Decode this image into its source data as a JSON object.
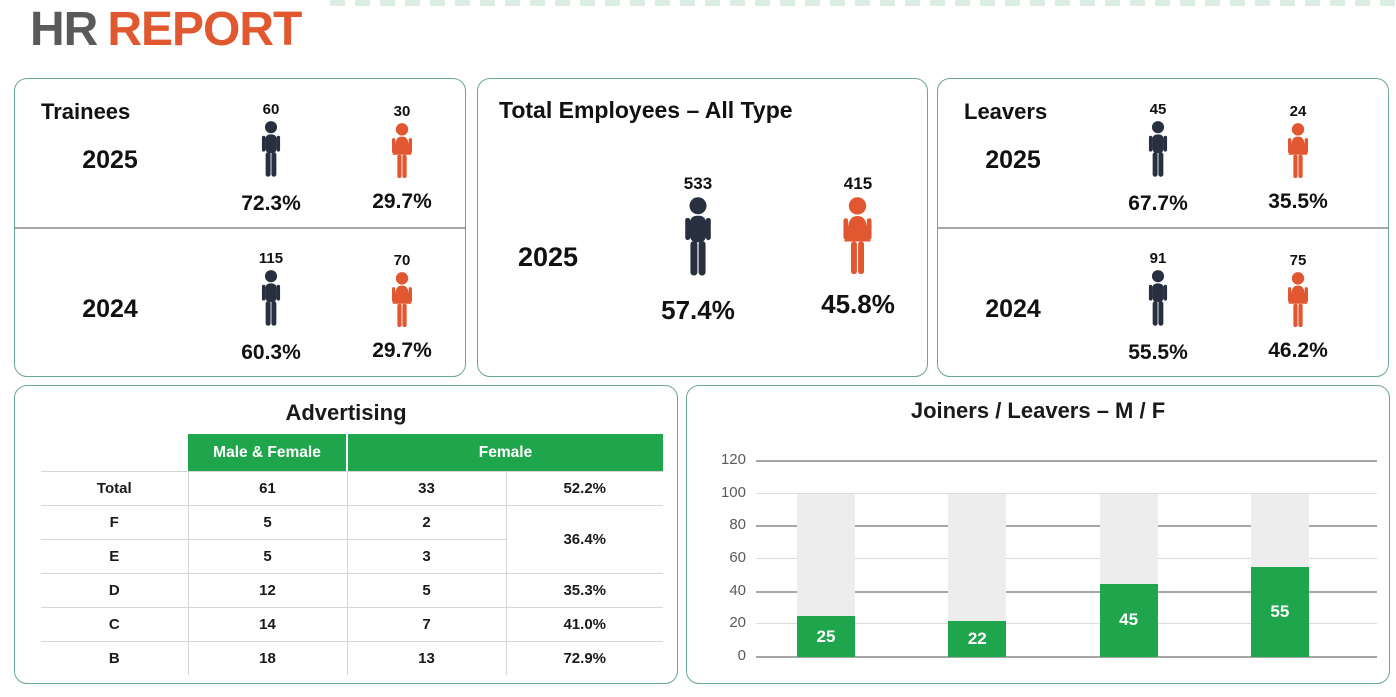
{
  "title": {
    "part1": "HR",
    "part2": "REPORT"
  },
  "colors": {
    "title_gray": "#595a5c",
    "accent_orange": "#e05730",
    "male_navy": "#283040",
    "female_orange": "#e05730",
    "green": "#1fa64d",
    "card_border": "#69a88b",
    "bar_background_gray": "#ededed"
  },
  "cards": {
    "trainees": {
      "title": "Trainees",
      "rows": [
        {
          "year": "2025",
          "male_count": "60",
          "male_pct": "72.3%",
          "female_count": "30",
          "female_pct": "29.7%"
        },
        {
          "year": "2024",
          "male_count": "115",
          "male_pct": "60.3%",
          "female_count": "70",
          "female_pct": "29.7%"
        }
      ]
    },
    "total_employees": {
      "title": "Total Employees – All Type",
      "rows": [
        {
          "year": "2025",
          "male_count": "533",
          "male_pct": "57.4%",
          "female_count": "415",
          "female_pct": "45.8%"
        }
      ]
    },
    "leavers": {
      "title": "Leavers",
      "rows": [
        {
          "year": "2025",
          "male_count": "45",
          "male_pct": "67.7%",
          "female_count": "24",
          "female_pct": "35.5%"
        },
        {
          "year": "2024",
          "male_count": "91",
          "male_pct": "55.5%",
          "female_count": "75",
          "female_pct": "46.2%"
        }
      ]
    }
  },
  "advertising": {
    "title": "Advertising",
    "col_header_1": "Male & Female",
    "col_header_2": "Female",
    "rows": [
      {
        "label": "Total",
        "male_female": "61",
        "female": "33",
        "female_pct": "52.2%"
      },
      {
        "label": "F",
        "male_female": "5",
        "female": "2",
        "female_pct": "36.4%"
      },
      {
        "label": "E",
        "male_female": "5",
        "female": "3"
      },
      {
        "label": "D",
        "male_female": "12",
        "female": "5",
        "female_pct": "35.3%"
      },
      {
        "label": "C",
        "male_female": "14",
        "female": "7",
        "female_pct": "41.0%"
      },
      {
        "label": "B",
        "male_female": "18",
        "female": "13",
        "female_pct": "72.9%"
      }
    ]
  },
  "chart_data": {
    "type": "bar",
    "title": "Joiners / Leavers – M / F",
    "categories": [
      "",
      "",
      "",
      ""
    ],
    "series": [
      {
        "name": "Value",
        "values": [
          25,
          22,
          45,
          55
        ],
        "color": "#1fa64d"
      },
      {
        "name": "Background",
        "values": [
          100,
          100,
          100,
          100
        ],
        "color": "#ededed"
      }
    ],
    "xlabel": "",
    "ylabel": "",
    "yticks": [
      0,
      20,
      40,
      60,
      80,
      100,
      120
    ],
    "ylim": [
      0,
      120
    ],
    "grid": true,
    "legend_position": "none"
  }
}
